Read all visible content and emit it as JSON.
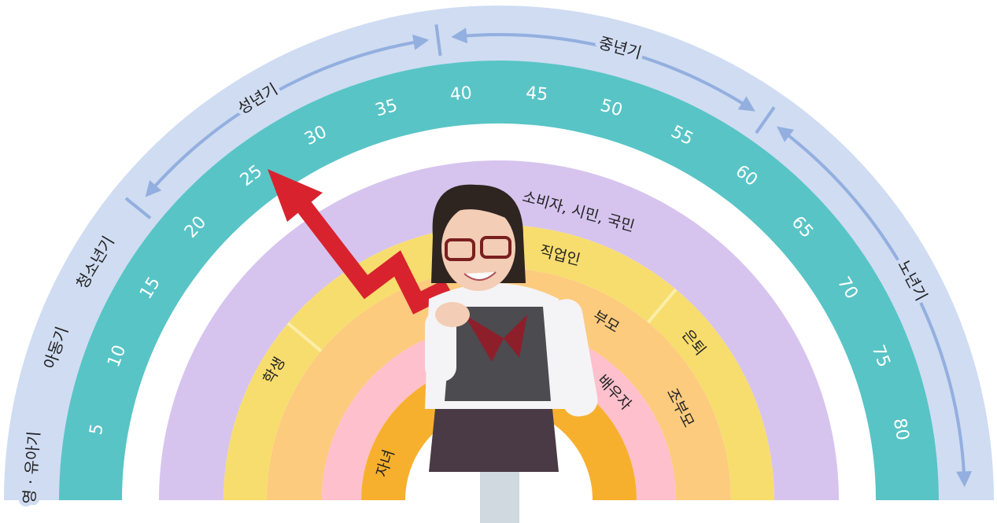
{
  "stages": [
    "영 · 유아기",
    "아동기",
    "청소년기",
    "성년기",
    "중년기",
    "노년기"
  ],
  "ages": [
    5,
    10,
    15,
    20,
    25,
    30,
    35,
    40,
    45,
    50,
    55,
    60,
    65,
    70,
    75,
    80
  ],
  "roles": [
    "소비자, 시민, 국민",
    "직업인",
    "학생",
    "은퇴",
    "부모",
    "배우자",
    "조부모",
    "자녀"
  ]
}
